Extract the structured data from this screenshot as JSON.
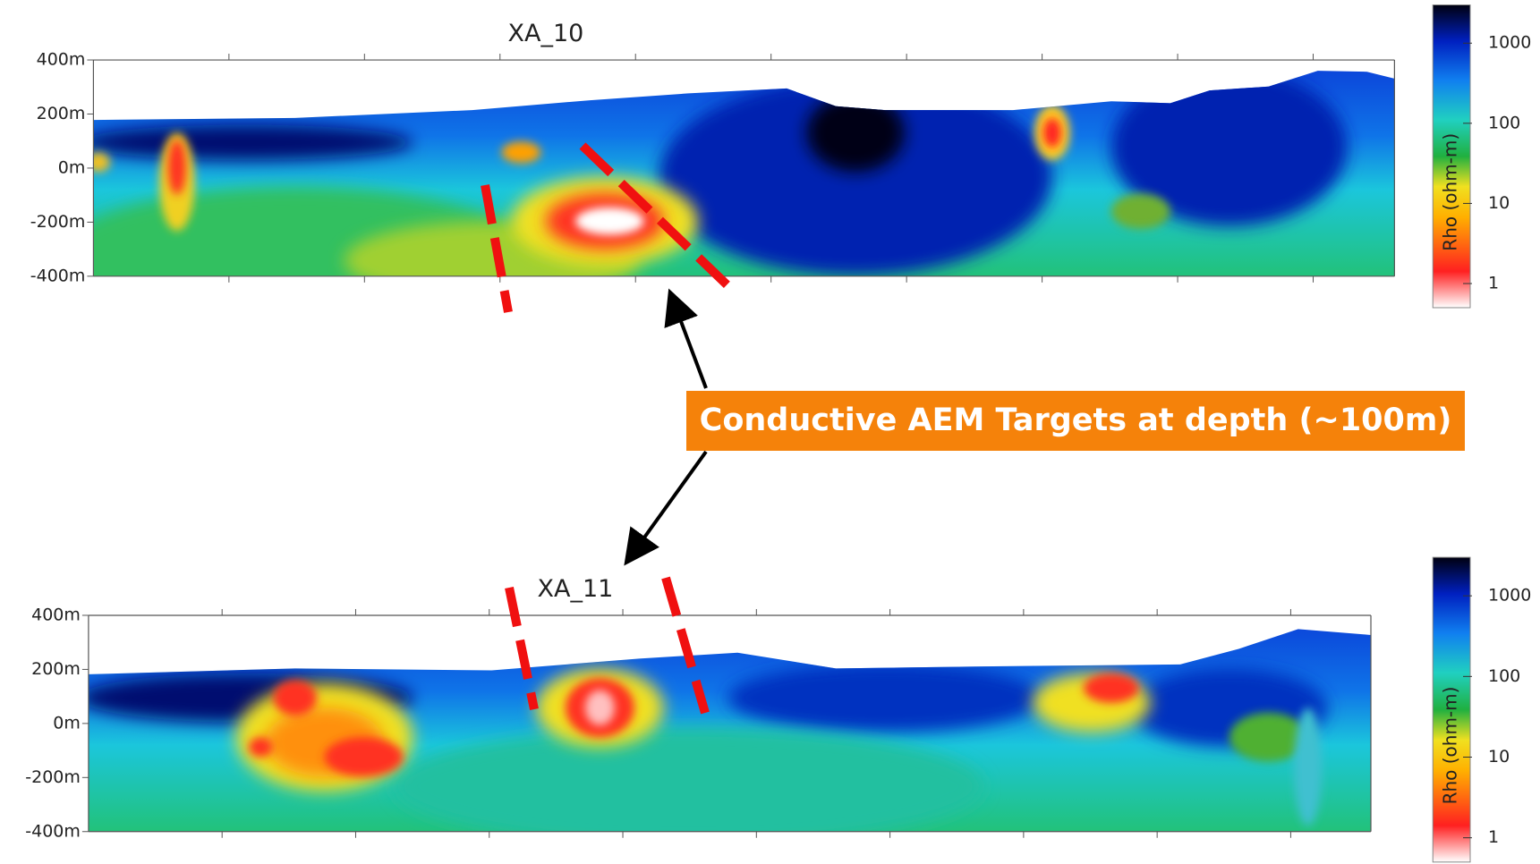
{
  "chart_data": [
    {
      "type": "heatmap",
      "title": "XA_10",
      "ylim": [
        -400,
        400
      ],
      "yticks": [
        {
          "value": 400,
          "label": "400m"
        },
        {
          "value": 200,
          "label": "200m"
        },
        {
          "value": 0,
          "label": "0m"
        },
        {
          "value": -200,
          "label": "-200m"
        },
        {
          "value": -400,
          "label": "-400m"
        }
      ],
      "colorbar": {
        "label": "Rho (ohm-m)",
        "log_scale": true,
        "lim": [
          0.5,
          3000
        ],
        "ticks": [
          1,
          10,
          100,
          1000
        ]
      }
    },
    {
      "type": "heatmap",
      "title": "XA_11",
      "ylim": [
        -400,
        400
      ],
      "yticks": [
        {
          "value": 400,
          "label": "400m"
        },
        {
          "value": 200,
          "label": "200m"
        },
        {
          "value": 0,
          "label": "0m"
        },
        {
          "value": -200,
          "label": "-200m"
        },
        {
          "value": -400,
          "label": "-400m"
        }
      ],
      "colorbar": {
        "label": "Rho (ohm-m)",
        "log_scale": true,
        "lim": [
          0.5,
          3000
        ],
        "ticks": [
          1,
          10,
          100,
          1000
        ]
      }
    }
  ],
  "annotation": "Conductive AEM Targets at depth (~100m)"
}
